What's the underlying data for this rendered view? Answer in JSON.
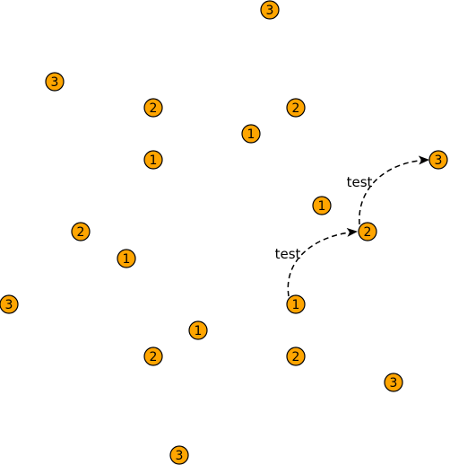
{
  "diagram": {
    "node_color": "#FFA500",
    "stroke_color": "#000000",
    "nodes": [
      {
        "label": "3"
      },
      {
        "label": "3"
      },
      {
        "label": "2"
      },
      {
        "label": "2"
      },
      {
        "label": "1"
      },
      {
        "label": "1"
      },
      {
        "label": "3"
      },
      {
        "label": "1"
      },
      {
        "label": "2"
      },
      {
        "label": "2"
      },
      {
        "label": "1"
      },
      {
        "label": "3"
      },
      {
        "label": "1"
      },
      {
        "label": "1"
      },
      {
        "label": "2"
      },
      {
        "label": "2"
      },
      {
        "label": "3"
      },
      {
        "label": "3"
      }
    ],
    "edges": [
      {
        "from": 12,
        "to": 9,
        "label": "test"
      },
      {
        "from": 9,
        "to": 6,
        "label": "test"
      }
    ]
  }
}
